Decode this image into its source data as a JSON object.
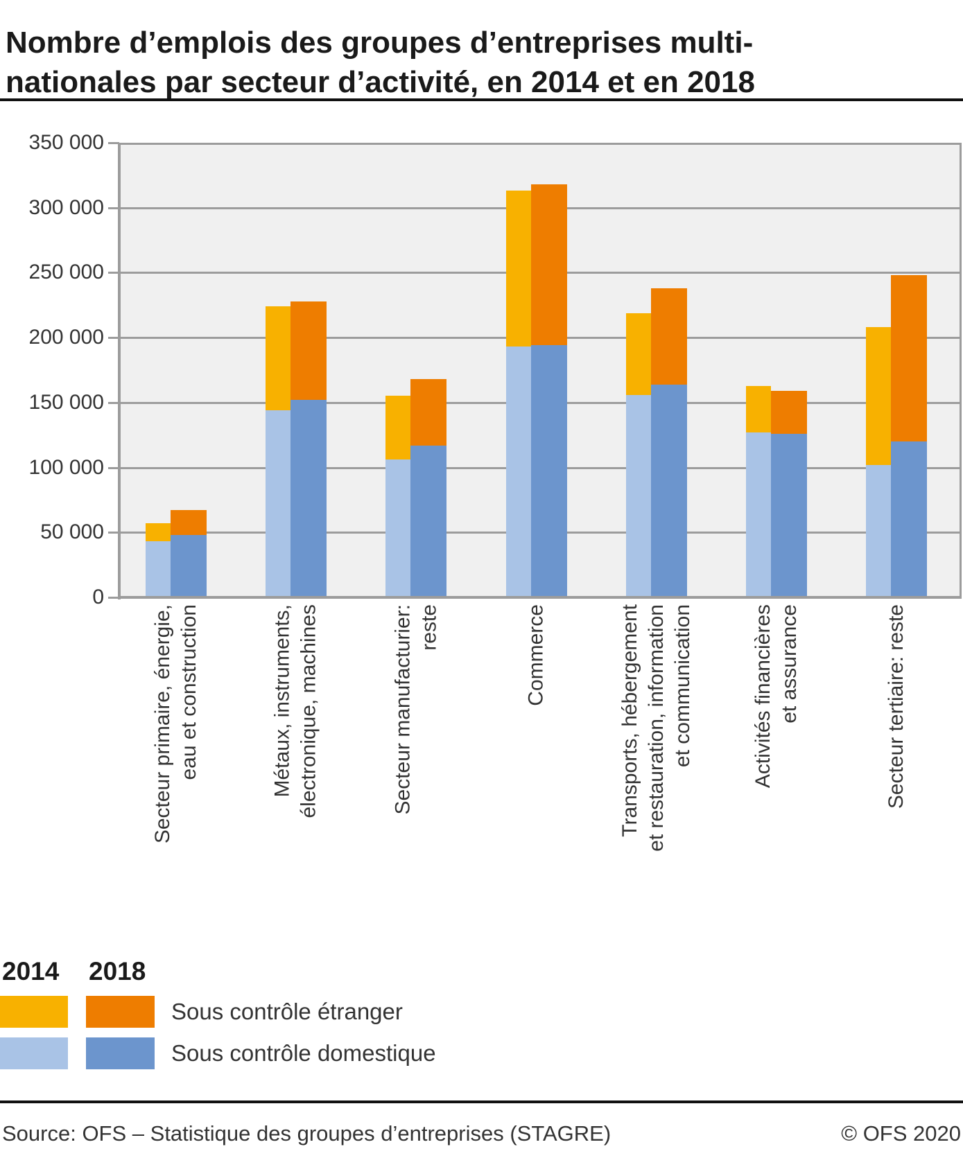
{
  "title_lines": [
    "Nombre d’emplois des groupes d’entreprises multi-",
    "nationales par secteur d’activité, en 2014 et en 2018"
  ],
  "chart_data": {
    "type": "bar",
    "stacked": true,
    "grid": true,
    "ylim": [
      0,
      350000
    ],
    "ytick_step": 50000,
    "ytick_labels": [
      "350 000",
      "300 000",
      "250 000",
      "200 000",
      "150 000",
      "100 000",
      "50 000",
      "0"
    ],
    "categories": [
      "Secteur primaire, énergie, eau et construction",
      "Métaux, instruments, électronique, machines",
      "Secteur manufacturier: reste",
      "Commerce",
      "Transports, hébergement et restauration, information et communication",
      "Activités financières et assurance",
      "Secteur tertiaire: reste"
    ],
    "category_label_lines": [
      [
        "Secteur primaire, énergie,",
        "eau et construction"
      ],
      [
        "Métaux, instruments,",
        "électronique, machines"
      ],
      [
        "Secteur manufacturier:",
        "reste"
      ],
      [
        "Commerce"
      ],
      [
        "Transports, hébergement",
        "et restauration, information",
        "et communication"
      ],
      [
        "Activités financières",
        "et assurance"
      ],
      [
        "Secteur tertiaire: reste"
      ]
    ],
    "series": [
      {
        "name": "Sous contrôle domestique",
        "year": "2014",
        "color": "#A9C3E6",
        "values": [
          43000,
          144000,
          106000,
          193000,
          156000,
          127000,
          102000
        ]
      },
      {
        "name": "Sous contrôle étranger",
        "year": "2014",
        "color": "#F8B100",
        "values": [
          14000,
          80000,
          49000,
          120000,
          63000,
          36000,
          106000
        ]
      },
      {
        "name": "Sous contrôle domestique",
        "year": "2018",
        "color": "#6C95CD",
        "values": [
          48000,
          152000,
          117000,
          194000,
          164000,
          126000,
          120000
        ]
      },
      {
        "name": "Sous contrôle étranger",
        "year": "2018",
        "color": "#EE7D00",
        "values": [
          19000,
          76000,
          51000,
          124000,
          74000,
          33000,
          128000
        ]
      }
    ],
    "legend": {
      "position": "bottom-left",
      "years": [
        "2014",
        "2018"
      ],
      "rows": [
        {
          "label": "Sous contrôle étranger",
          "colors": [
            "#F8B100",
            "#EE7D00"
          ]
        },
        {
          "label": "Sous contrôle domestique",
          "colors": [
            "#A9C3E6",
            "#6C95CD"
          ]
        }
      ]
    },
    "colors": {
      "plot_background": "#F0F0F0",
      "gridline": "#9C9C9C",
      "axis": "#9C9C9C",
      "text": "#333333"
    }
  },
  "footer": {
    "source": "Source: OFS – Statistique des groupes d’entreprises (STAGRE)",
    "copyright": "© OFS 2020"
  }
}
